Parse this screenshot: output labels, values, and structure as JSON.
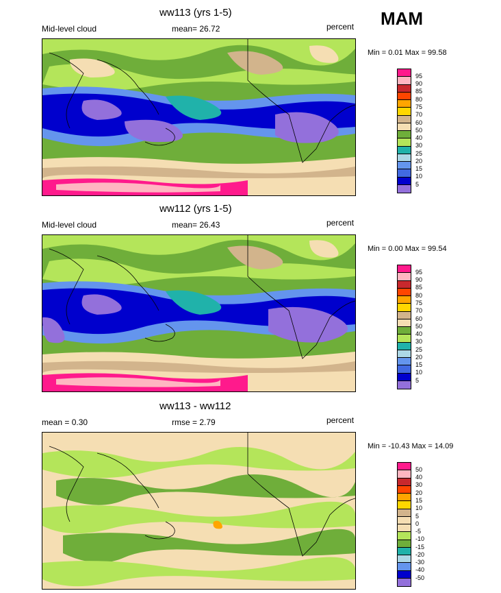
{
  "season": "MAM",
  "panels": [
    {
      "title": "ww113 (yrs 1-5)",
      "left_label": "Mid-level cloud",
      "mean_label": "mean=  26.72",
      "units": "percent",
      "minmax": "Min =   0.01 Max =  99.58",
      "levels": [
        "95",
        "90",
        "85",
        "80",
        "75",
        "70",
        "60",
        "50",
        "40",
        "30",
        "25",
        "20",
        "15",
        "10",
        "5"
      ]
    },
    {
      "title": "ww112 (yrs 1-5)",
      "left_label": "Mid-level cloud",
      "mean_label": "mean=  26.43",
      "units": "percent",
      "minmax": "Min =   0.00 Max =  99.54",
      "levels": [
        "95",
        "90",
        "85",
        "80",
        "75",
        "70",
        "60",
        "50",
        "40",
        "30",
        "25",
        "20",
        "15",
        "10",
        "5"
      ]
    },
    {
      "title": "ww113 - ww112",
      "left_label": "mean =   0.30",
      "mean_label": "rmse =   2.79",
      "units": "percent",
      "minmax": "Min = -10.43 Max =  14.09",
      "levels": [
        "50",
        "40",
        "30",
        "20",
        "15",
        "10",
        "5",
        "0",
        "-5",
        "-10",
        "-15",
        "-20",
        "-30",
        "-40",
        "-50"
      ]
    }
  ],
  "colors": {
    "abs_scale": [
      "#ff1a8c",
      "#ffb6c1",
      "#c8282d",
      "#ff4500",
      "#ffa500",
      "#ffd700",
      "#d2b48c",
      "#f5deb3",
      "#6fae3a",
      "#b4e55a",
      "#20b2aa",
      "#add8e6",
      "#6495ed",
      "#4169e1",
      "#0000cd",
      "#9370db"
    ],
    "diff_scale": [
      "#ff1a8c",
      "#ffb6c1",
      "#c8282d",
      "#ff4500",
      "#ffa500",
      "#ffd700",
      "#d2b48c",
      "#f5deb3",
      "#f5deb3",
      "#b4e55a",
      "#6fae3a",
      "#20b2aa",
      "#add8e6",
      "#6495ed",
      "#0000cd",
      "#9370db"
    ]
  }
}
